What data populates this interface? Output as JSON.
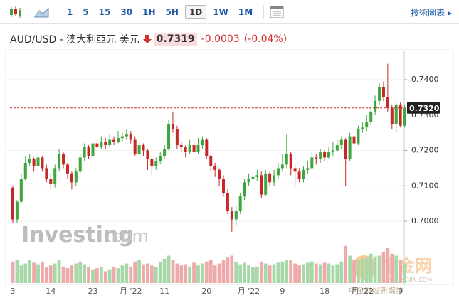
{
  "toolbar": {
    "intervals": [
      "1",
      "5",
      "15",
      "30",
      "1H",
      "5H",
      "1D",
      "1W",
      "1M"
    ],
    "technical": "技術圖表 ▸"
  },
  "header": {
    "instrument": "AUD/USD - 澳大利亞元 美元",
    "last_price": "0.7319",
    "change": "-0.0003",
    "change_percent": "(-0.04%)"
  },
  "watermarks": {
    "investing": "Investing",
    "investing_suffix": ".com",
    "zhongjin": "中金网",
    "zhongjin_url": "ZHONGJIN.COM",
    "zhongjin_sub": "中金财经新媒体"
  },
  "chart_data": {
    "type": "candlestick",
    "categories": [
      "3",
      null,
      null,
      null,
      null,
      null,
      null,
      null,
      null,
      "14",
      null,
      null,
      null,
      null,
      null,
      null,
      null,
      null,
      null,
      "23",
      null,
      null,
      null,
      null,
      null,
      null,
      null,
      null,
      "月 '22",
      null,
      null,
      null,
      null,
      null,
      null,
      null,
      "11",
      null,
      null,
      null,
      null,
      null,
      null,
      null,
      null,
      null,
      "20",
      null,
      null,
      null,
      null,
      null,
      null,
      null,
      null,
      null,
      "月 '22",
      null,
      null,
      null,
      null,
      null,
      null,
      null,
      "9",
      null,
      null,
      null,
      null,
      null,
      null,
      null,
      null,
      null,
      "18",
      null,
      null,
      null,
      null,
      null,
      null,
      null,
      null,
      "月 '22",
      null,
      null,
      null,
      null,
      null,
      null,
      null,
      null,
      "9",
      null
    ],
    "open": [
      0.7095,
      0.7005,
      0.7055,
      0.712,
      0.7165,
      0.7175,
      0.7155,
      0.718,
      0.715,
      0.712,
      0.7105,
      0.715,
      0.719,
      0.716,
      0.7135,
      0.711,
      0.714,
      0.718,
      0.721,
      0.7185,
      0.722,
      0.721,
      0.7225,
      0.7215,
      0.723,
      0.7225,
      0.7235,
      0.724,
      0.7245,
      0.723,
      0.719,
      0.7215,
      0.72,
      0.7175,
      0.7155,
      0.717,
      0.7185,
      0.7205,
      0.7275,
      0.726,
      0.7215,
      0.721,
      0.7195,
      0.7215,
      0.7195,
      0.7215,
      0.723,
      0.7185,
      0.7155,
      0.7145,
      0.712,
      0.708,
      0.703,
      0.7005,
      0.703,
      0.707,
      0.711,
      0.712,
      0.7125,
      0.713,
      0.7075,
      0.7135,
      0.711,
      0.713,
      0.715,
      0.716,
      0.719,
      0.715,
      0.714,
      0.712,
      0.7145,
      0.715,
      0.718,
      0.7175,
      0.7195,
      0.718,
      0.7195,
      0.72,
      0.7215,
      0.723,
      0.7175,
      0.724,
      0.722,
      0.726,
      0.7265,
      0.728,
      0.731,
      0.734,
      0.738,
      0.735,
      0.732,
      0.7275,
      0.733,
      0.727
    ],
    "high": [
      0.71,
      0.706,
      0.7135,
      0.7185,
      0.719,
      0.718,
      0.719,
      0.7185,
      0.716,
      0.7135,
      0.716,
      0.7205,
      0.7195,
      0.7165,
      0.714,
      0.715,
      0.719,
      0.722,
      0.7215,
      0.724,
      0.723,
      0.724,
      0.7235,
      0.7245,
      0.724,
      0.7255,
      0.725,
      0.726,
      0.7255,
      0.724,
      0.7225,
      0.722,
      0.7205,
      0.7185,
      0.718,
      0.7195,
      0.7215,
      0.7285,
      0.731,
      0.727,
      0.7225,
      0.7215,
      0.723,
      0.7225,
      0.7235,
      0.724,
      0.7235,
      0.719,
      0.7165,
      0.715,
      0.713,
      0.709,
      0.704,
      0.7045,
      0.708,
      0.712,
      0.7135,
      0.714,
      0.7145,
      0.714,
      0.7145,
      0.714,
      0.7145,
      0.7165,
      0.719,
      0.7245,
      0.7195,
      0.716,
      0.715,
      0.7155,
      0.717,
      0.7195,
      0.719,
      0.7205,
      0.72,
      0.721,
      0.7225,
      0.723,
      0.724,
      0.7235,
      0.725,
      0.7245,
      0.727,
      0.728,
      0.73,
      0.732,
      0.7355,
      0.739,
      0.7395,
      0.7445,
      0.733,
      0.734,
      0.7335,
      0.733
    ],
    "low": [
      0.6995,
      0.6995,
      0.705,
      0.7115,
      0.7155,
      0.714,
      0.715,
      0.714,
      0.711,
      0.709,
      0.7095,
      0.714,
      0.715,
      0.712,
      0.709,
      0.71,
      0.7135,
      0.717,
      0.7175,
      0.718,
      0.72,
      0.7205,
      0.7205,
      0.721,
      0.7215,
      0.722,
      0.7225,
      0.723,
      0.722,
      0.7185,
      0.718,
      0.7185,
      0.7145,
      0.713,
      0.7145,
      0.716,
      0.7175,
      0.72,
      0.725,
      0.7205,
      0.7195,
      0.718,
      0.719,
      0.7185,
      0.719,
      0.7205,
      0.7175,
      0.714,
      0.7125,
      0.71,
      0.707,
      0.702,
      0.697,
      0.6985,
      0.702,
      0.706,
      0.71,
      0.711,
      0.7115,
      0.7065,
      0.707,
      0.71,
      0.71,
      0.712,
      0.714,
      0.715,
      0.713,
      0.71,
      0.711,
      0.711,
      0.7135,
      0.7145,
      0.716,
      0.7165,
      0.717,
      0.7175,
      0.7185,
      0.7195,
      0.7205,
      0.71,
      0.717,
      0.721,
      0.7215,
      0.725,
      0.7255,
      0.727,
      0.73,
      0.733,
      0.734,
      0.731,
      0.726,
      0.725,
      0.7265,
      0.7265
    ],
    "close": [
      0.7005,
      0.7055,
      0.712,
      0.7165,
      0.7175,
      0.7155,
      0.718,
      0.715,
      0.712,
      0.7105,
      0.715,
      0.719,
      0.716,
      0.7135,
      0.711,
      0.714,
      0.718,
      0.721,
      0.7185,
      0.722,
      0.721,
      0.7225,
      0.7215,
      0.723,
      0.7225,
      0.7235,
      0.724,
      0.7245,
      0.723,
      0.719,
      0.7215,
      0.72,
      0.7175,
      0.7155,
      0.717,
      0.7185,
      0.7205,
      0.7275,
      0.726,
      0.7215,
      0.721,
      0.7195,
      0.7215,
      0.7195,
      0.7215,
      0.723,
      0.7185,
      0.7155,
      0.7145,
      0.712,
      0.708,
      0.703,
      0.7005,
      0.703,
      0.707,
      0.711,
      0.712,
      0.7125,
      0.713,
      0.7075,
      0.7135,
      0.711,
      0.713,
      0.715,
      0.716,
      0.719,
      0.715,
      0.714,
      0.712,
      0.7145,
      0.715,
      0.718,
      0.7175,
      0.7195,
      0.718,
      0.7195,
      0.72,
      0.7215,
      0.723,
      0.7175,
      0.724,
      0.722,
      0.726,
      0.7265,
      0.728,
      0.731,
      0.734,
      0.738,
      0.735,
      0.732,
      0.7275,
      0.733,
      0.727,
      0.7319
    ],
    "volume": [
      55,
      60,
      45,
      50,
      58,
      52,
      48,
      55,
      40,
      45,
      50,
      60,
      42,
      38,
      45,
      50,
      55,
      48,
      40,
      35,
      38,
      42,
      30,
      35,
      40,
      38,
      45,
      50,
      42,
      55,
      60,
      48,
      50,
      45,
      40,
      55,
      62,
      70,
      58,
      50,
      45,
      48,
      40,
      52,
      45,
      50,
      55,
      60,
      45,
      50,
      58,
      65,
      70,
      55,
      48,
      52,
      45,
      40,
      42,
      55,
      50,
      45,
      48,
      52,
      55,
      60,
      58,
      50,
      45,
      48,
      52,
      55,
      50,
      48,
      52,
      50,
      45,
      48,
      55,
      95,
      70,
      60,
      58,
      62,
      65,
      75,
      68,
      70,
      80,
      90,
      75,
      70,
      60,
      50
    ],
    "vlim": [
      0,
      100
    ],
    "ylim": [
      0.696,
      0.7475
    ],
    "yticks": [
      {
        "value": 0.74,
        "label": "0.7400"
      },
      {
        "value": 0.73,
        "label": "0.7300"
      },
      {
        "value": 0.72,
        "label": "0.7200"
      },
      {
        "value": 0.71,
        "label": "0.7100"
      },
      {
        "value": 0.7,
        "label": "0.7000"
      }
    ],
    "price_marker": {
      "value": 0.732,
      "label": "0.7320"
    },
    "grid": true,
    "up_color": "#3fa63f",
    "down_color": "#c62828",
    "volume_up_color": "#a8d8a8",
    "volume_down_color": "#eeaaaa",
    "marker_color": "#c62828"
  }
}
